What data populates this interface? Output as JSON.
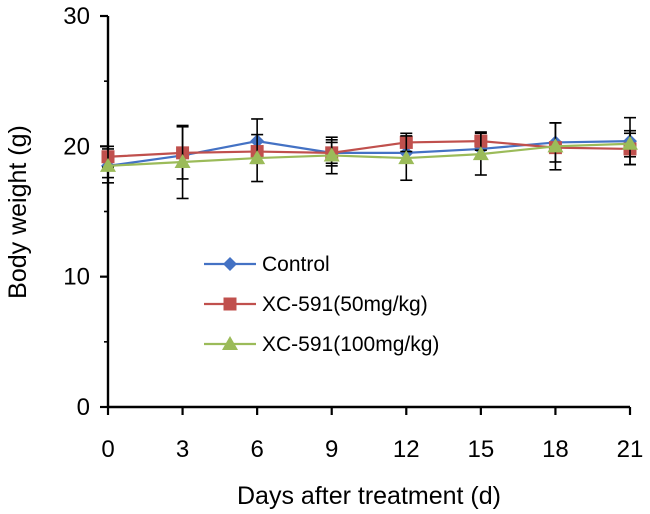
{
  "chart_data": {
    "type": "line",
    "title": "",
    "xlabel": "Days after treatment (d)",
    "ylabel": "Body weight (g)",
    "x": [
      0,
      3,
      6,
      9,
      12,
      15,
      18,
      21
    ],
    "x_tick_labels": [
      "0",
      "3",
      "6",
      "9",
      "12",
      "15",
      "18",
      "21"
    ],
    "xlim": [
      0,
      21
    ],
    "ylim": [
      0,
      30
    ],
    "y_ticks": [
      0,
      10,
      20,
      30
    ],
    "y_tick_labels": [
      "0",
      "10",
      "20",
      "30"
    ],
    "grid": false,
    "legend_position": "center-left",
    "series": [
      {
        "name": "Control",
        "color": "#4472C4",
        "marker": "diamond",
        "values": [
          18.5,
          19.3,
          20.4,
          19.5,
          19.5,
          19.8,
          20.3,
          20.4
        ],
        "error": [
          0.9,
          0.0,
          1.7,
          0.8,
          0.0,
          0.0,
          1.5,
          1.8
        ]
      },
      {
        "name": "XC-591(50mg/kg)",
        "color": "#C0504D",
        "marker": "square",
        "values": [
          19.2,
          19.5,
          19.6,
          19.5,
          20.3,
          20.4,
          19.9,
          19.8
        ],
        "error": [
          0.8,
          2.0,
          0.0,
          1.0,
          0.7,
          0.7,
          0.0,
          1.2
        ]
      },
      {
        "name": "XC-591(100mg/kg)",
        "color": "#9BBB59",
        "marker": "triangle",
        "values": [
          18.5,
          18.8,
          19.1,
          19.3,
          19.1,
          19.4,
          20.0,
          20.2
        ],
        "error": [
          1.3,
          2.8,
          1.8,
          1.4,
          1.7,
          1.6,
          1.8,
          1.0
        ]
      }
    ]
  }
}
